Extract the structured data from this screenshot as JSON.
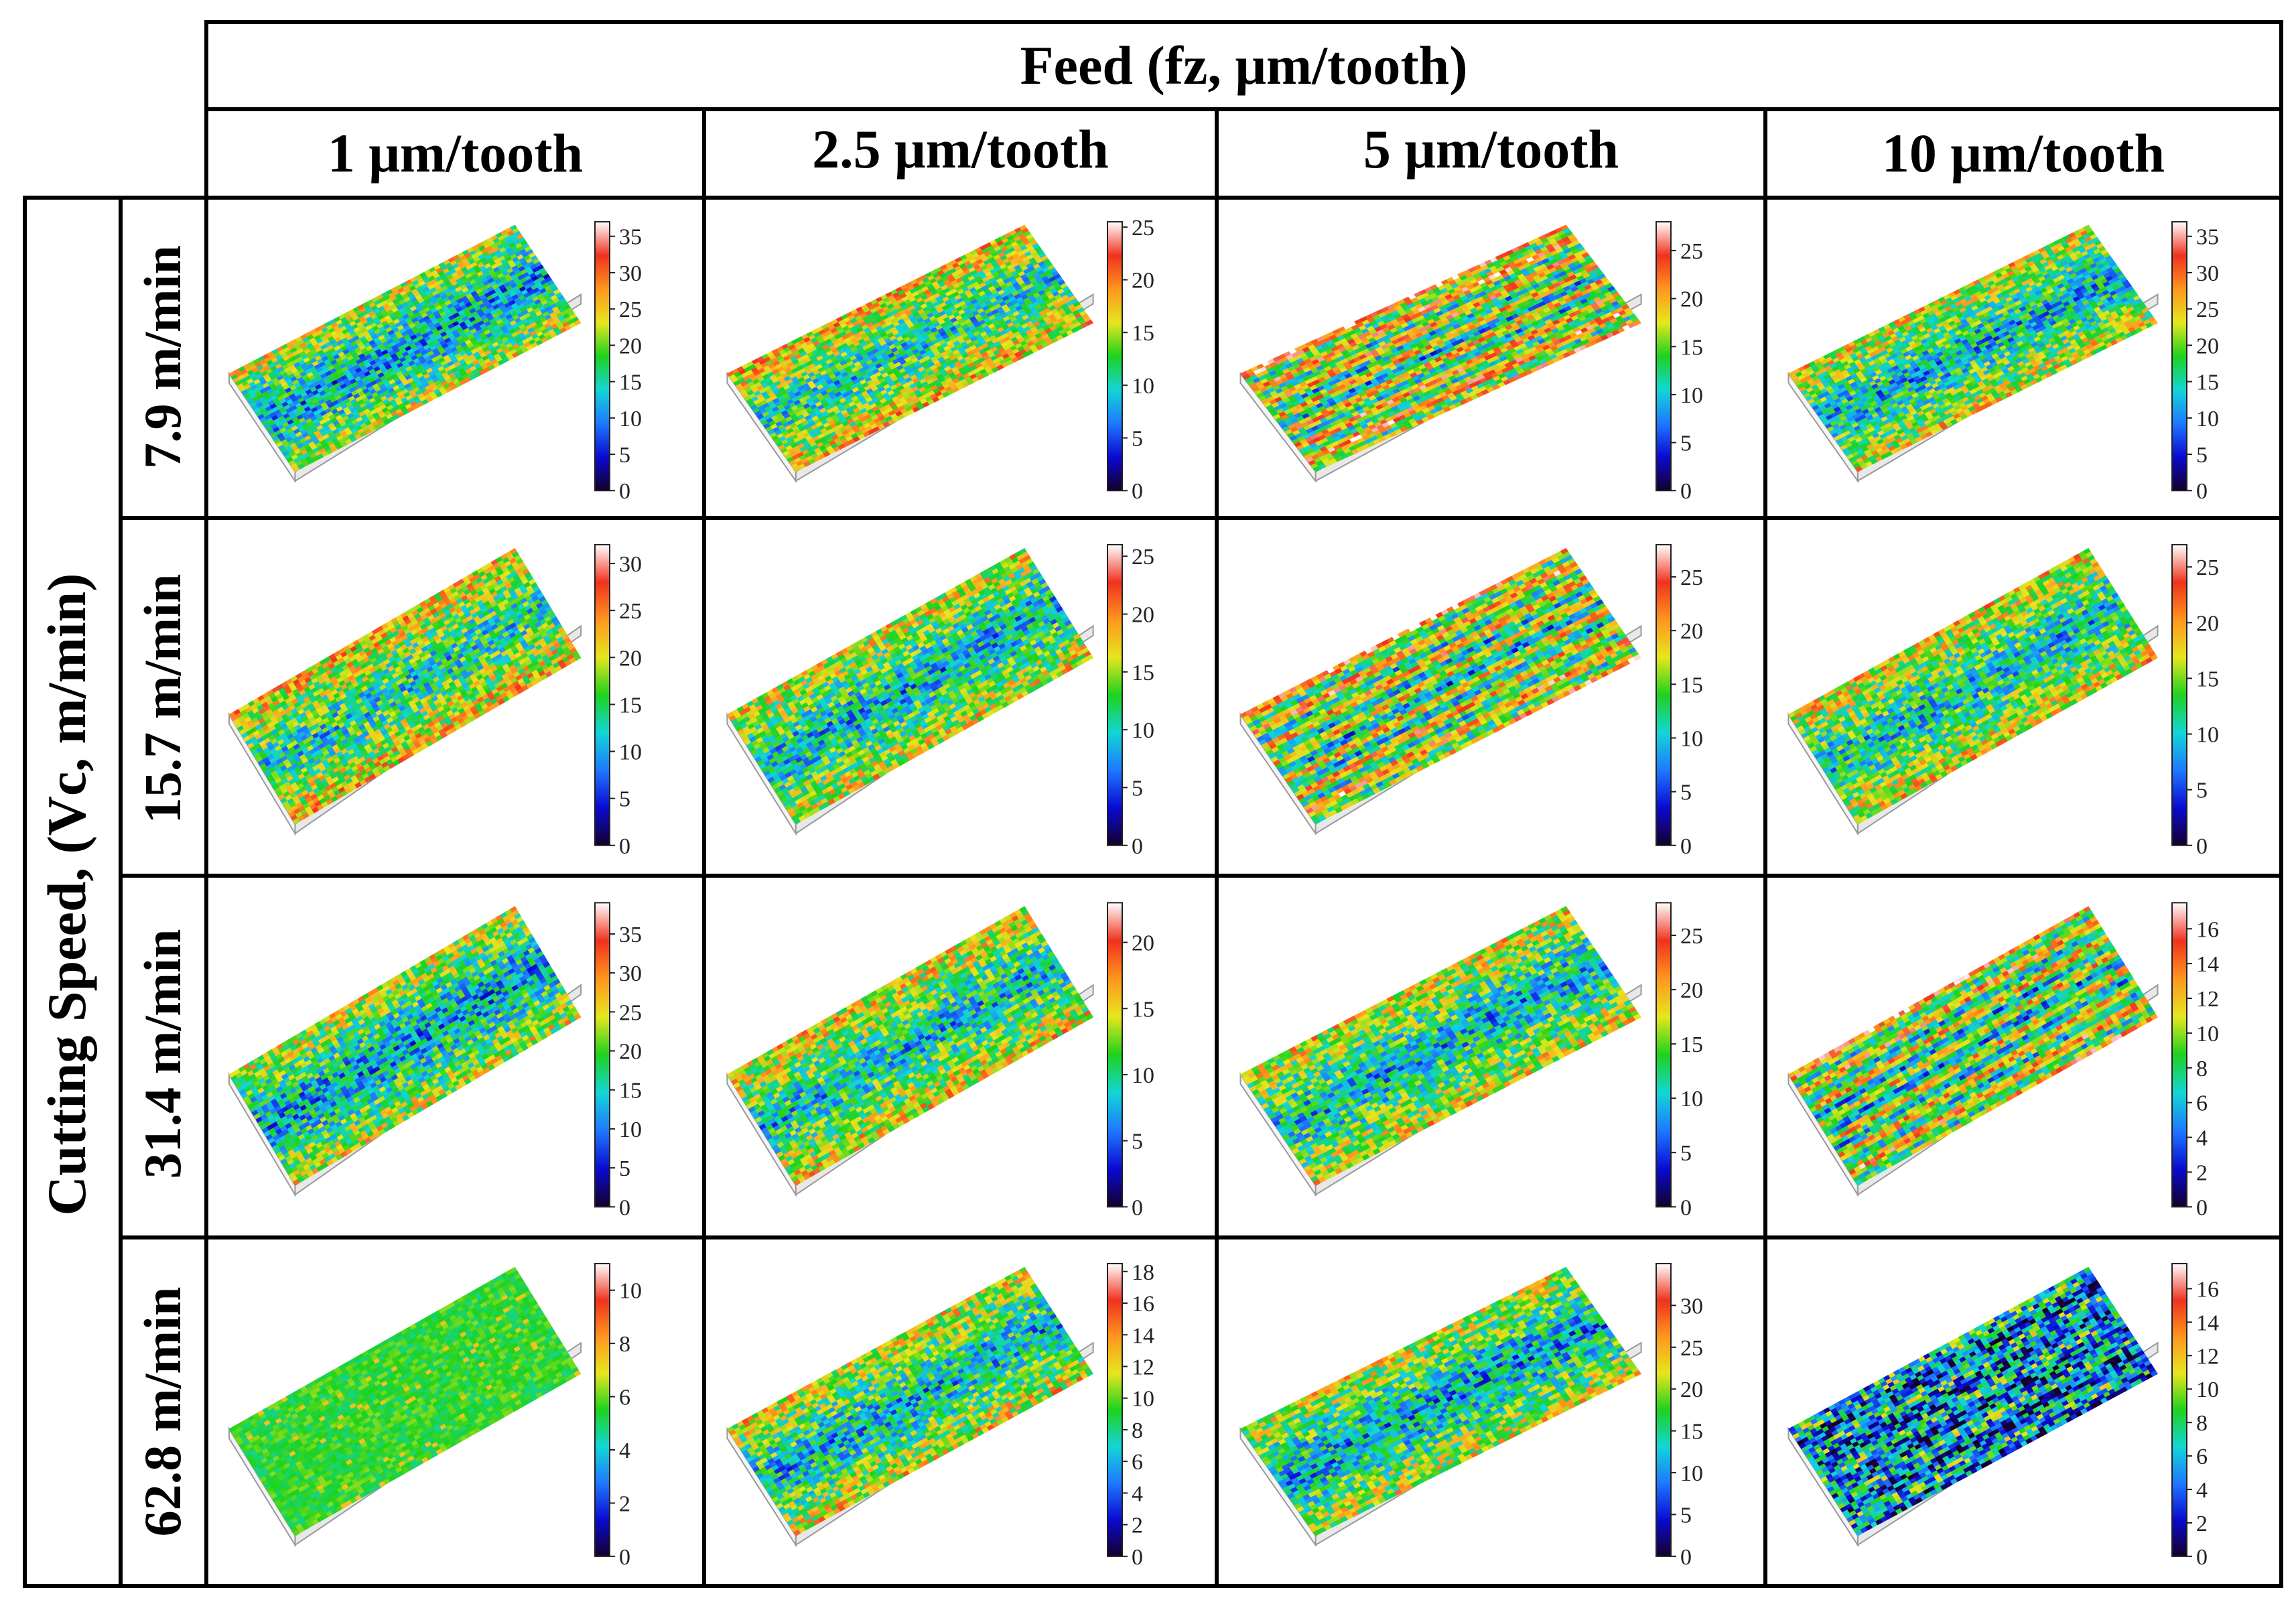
{
  "header": {
    "feed_title": "Feed (fz, μm/tooth)",
    "speed_title": "Cutting Speed, (Vc, m/min)"
  },
  "columns": [
    "1 μm/tooth",
    "2.5 μm/tooth",
    "5 μm/tooth",
    "10 μm/tooth"
  ],
  "rows": [
    "7.9 m/min",
    "15.7 m/min",
    "31.4 m/min",
    "62.8 m/min"
  ],
  "colormap": [
    "#14002a",
    "#0a0ad2",
    "#1e78ff",
    "#12d6d6",
    "#1ed21e",
    "#e6e61e",
    "#ff961e",
    "#f0321e",
    "#ffffff"
  ],
  "cells": [
    [
      {
        "ticks": [
          0,
          5,
          10,
          15,
          20,
          25,
          30,
          35
        ],
        "max": 37,
        "pattern": "central-dark",
        "mean": 0.42
      },
      {
        "ticks": [
          0,
          5,
          10,
          15,
          20,
          25
        ],
        "max": 25.5,
        "pattern": "central-dark",
        "mean": 0.5
      },
      {
        "ticks": [
          0,
          5,
          10,
          15,
          20,
          25
        ],
        "max": 28,
        "pattern": "streaks",
        "mean": 0.5
      },
      {
        "ticks": [
          0,
          5,
          10,
          15,
          20,
          25,
          30,
          35
        ],
        "max": 37,
        "pattern": "central-dark",
        "mean": 0.45
      }
    ],
    [
      {
        "ticks": [
          0,
          5,
          10,
          15,
          20,
          25,
          30
        ],
        "max": 32,
        "pattern": "central-dark",
        "mean": 0.5
      },
      {
        "ticks": [
          0,
          5,
          10,
          15,
          20,
          25
        ],
        "max": 26,
        "pattern": "central-dark",
        "mean": 0.45
      },
      {
        "ticks": [
          0,
          5,
          10,
          15,
          20,
          25
        ],
        "max": 28,
        "pattern": "streaks",
        "mean": 0.47
      },
      {
        "ticks": [
          0,
          5,
          10,
          15,
          20,
          25
        ],
        "max": 27,
        "pattern": "central-dark",
        "mean": 0.47
      }
    ],
    [
      {
        "ticks": [
          0,
          5,
          10,
          15,
          20,
          25,
          30,
          35
        ],
        "max": 39,
        "pattern": "central-dark",
        "mean": 0.42
      },
      {
        "ticks": [
          0,
          5,
          10,
          15,
          20
        ],
        "max": 23,
        "pattern": "central-dark",
        "mean": 0.47
      },
      {
        "ticks": [
          0,
          5,
          10,
          15,
          20,
          25
        ],
        "max": 28,
        "pattern": "central-dark",
        "mean": 0.45
      },
      {
        "ticks": [
          0,
          2,
          4,
          6,
          8,
          10,
          12,
          14,
          16
        ],
        "max": 17.5,
        "pattern": "streaks",
        "mean": 0.45
      }
    ],
    [
      {
        "ticks": [
          0,
          2,
          4,
          6,
          8,
          10
        ],
        "max": 11,
        "pattern": "uniform-green",
        "mean": 0.48
      },
      {
        "ticks": [
          0,
          2,
          4,
          6,
          8,
          10,
          12,
          14,
          16,
          18
        ],
        "max": 18.5,
        "pattern": "central-dark",
        "mean": 0.45
      },
      {
        "ticks": [
          0,
          5,
          10,
          15,
          20,
          25,
          30
        ],
        "max": 35,
        "pattern": "central-dark",
        "mean": 0.42
      },
      {
        "ticks": [
          0,
          2,
          4,
          6,
          8,
          10,
          12,
          14,
          16
        ],
        "max": 17.5,
        "pattern": "dark-textured",
        "mean": 0.4
      }
    ]
  ]
}
